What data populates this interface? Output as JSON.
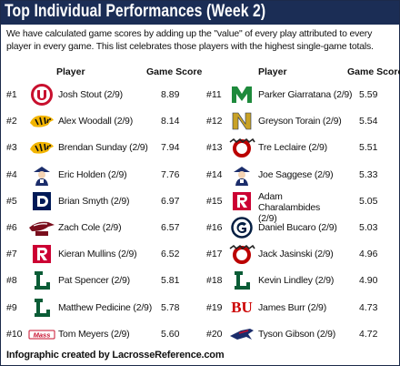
{
  "title": "Top Individual Performances (Week 2)",
  "description": "We have calculated game scores by adding up the \"value\" of every play attributed to every player in every game. This list celebrates those players with the highest single-game totals.",
  "headers": {
    "player": "Player",
    "score": "Game Score"
  },
  "footer": "Infographic created by LacrosseReference.com",
  "colors": {
    "title_bar": "#1b2d55"
  },
  "players": [
    {
      "rank": "#1",
      "name": "Josh Stout (2/9)",
      "score": "8.89",
      "logo": "utah-logo"
    },
    {
      "rank": "#2",
      "name": "Alex Woodall (2/9)",
      "score": "8.14",
      "logo": "towson-tiger-logo"
    },
    {
      "rank": "#3",
      "name": "Brendan Sunday (2/9)",
      "score": "7.94",
      "logo": "towson-tiger-logo"
    },
    {
      "rank": "#4",
      "name": "Eric Holden (2/9)",
      "score": "7.76",
      "logo": "minuteman-logo"
    },
    {
      "rank": "#5",
      "name": "Brian Smyth (2/9)",
      "score": "6.97",
      "logo": "duke-logo"
    },
    {
      "rank": "#6",
      "name": "Zach Cole (2/9)",
      "score": "6.57",
      "logo": "hawk-logo"
    },
    {
      "rank": "#7",
      "name": "Kieran Mullins (2/9)",
      "score": "6.52",
      "logo": "rutgers-logo"
    },
    {
      "rank": "#8",
      "name": "Pat Spencer (2/9)",
      "score": "5.81",
      "logo": "loyola-logo"
    },
    {
      "rank": "#9",
      "name": "Matthew Pedicine (2/9)",
      "score": "5.78",
      "logo": "loyola-logo"
    },
    {
      "rank": "#10",
      "name": "Tom Meyers (2/9)",
      "score": "5.60",
      "logo": "wordmark-logo"
    },
    {
      "rank": "#11",
      "name": "Parker Giarratana (2/9)",
      "score": "5.59",
      "logo": "manhattan-logo"
    },
    {
      "rank": "#12",
      "name": "Greyson Torain (2/9)",
      "score": "5.54",
      "logo": "navy-logo"
    },
    {
      "rank": "#13",
      "name": "Tre Leclaire (2/9)",
      "score": "5.51",
      "logo": "ohio-state-logo"
    },
    {
      "rank": "#14",
      "name": "Joe Saggese (2/9)",
      "score": "5.33",
      "logo": "minuteman-logo"
    },
    {
      "rank": "#15",
      "name": "Adam Charalambides (2/9)",
      "score": "5.05",
      "logo": "rutgers-logo"
    },
    {
      "rank": "#16",
      "name": "Daniel Bucaro (2/9)",
      "score": "5.03",
      "logo": "georgetown-logo"
    },
    {
      "rank": "#17",
      "name": "Jack Jasinski (2/9)",
      "score": "4.96",
      "logo": "ohio-state-logo"
    },
    {
      "rank": "#18",
      "name": "Kevin Lindley (2/9)",
      "score": "4.90",
      "logo": "loyola-logo"
    },
    {
      "rank": "#19",
      "name": "James Burr (2/9)",
      "score": "4.73",
      "logo": "bu-logo"
    },
    {
      "rank": "#20",
      "name": "Tyson Gibson (2/9)",
      "score": "4.72",
      "logo": "jet-logo"
    }
  ]
}
